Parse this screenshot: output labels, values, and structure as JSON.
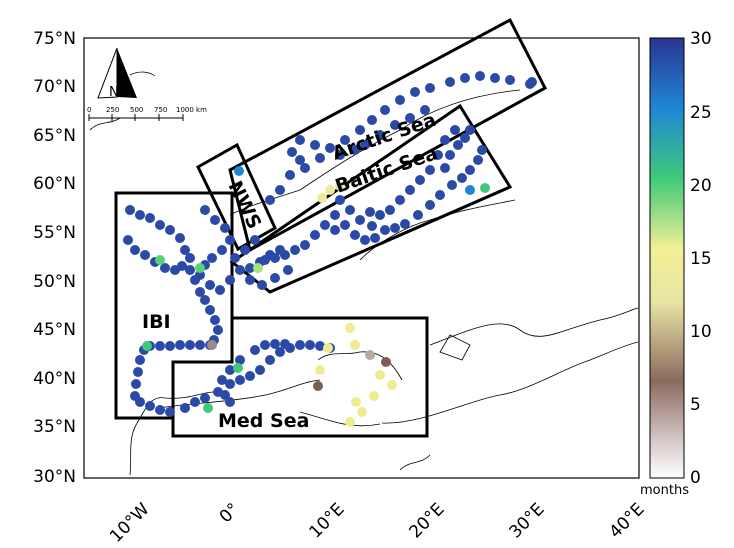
{
  "map": {
    "lat_ticks": [
      "75°N",
      "70°N",
      "65°N",
      "60°N",
      "55°N",
      "50°N",
      "45°N",
      "40°N",
      "35°N",
      "30°N"
    ],
    "lon_ticks": [
      "10°W",
      "0°",
      "10°E",
      "20°E",
      "30°E",
      "40°E"
    ],
    "regions": {
      "arctic": "Arctic Sea",
      "baltic": "Baltic Sea",
      "nws": "NWS",
      "ibi": "IBI",
      "med": "Med Sea"
    },
    "north_arrow": {
      "label": "N",
      "scale_labels": [
        "0",
        "250",
        "500",
        "750",
        "1000 km"
      ]
    }
  },
  "colorbar": {
    "ticks": [
      "30",
      "25",
      "20",
      "15",
      "10",
      "5",
      "0"
    ],
    "units": "months"
  }
}
